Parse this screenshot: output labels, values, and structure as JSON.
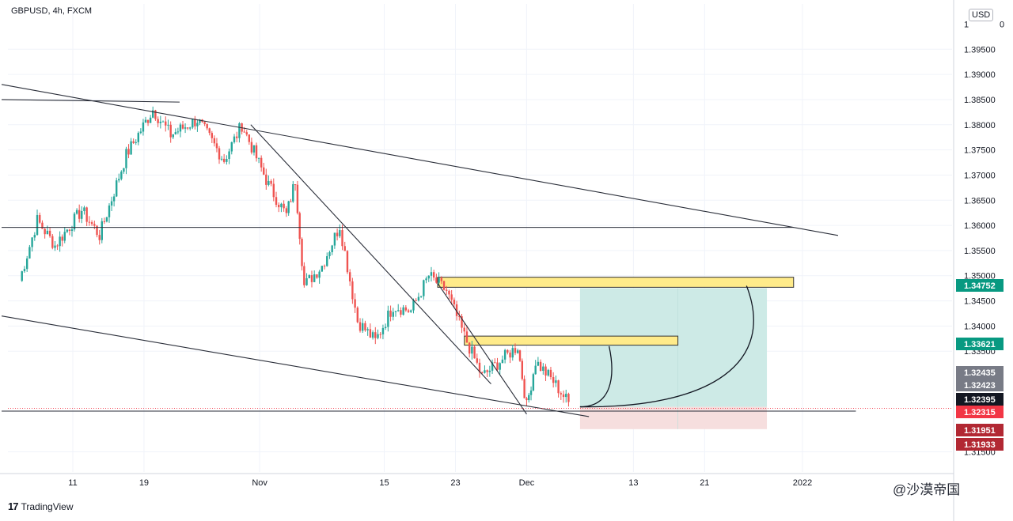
{
  "header": {
    "symbol_line": "GBPUSD, 4h, FXCM",
    "currency": "USD"
  },
  "footer": {
    "brand": "TradingView",
    "brand_logo": "17",
    "watermark": "@沙漠帝国"
  },
  "colors": {
    "up": "#26a69a",
    "down": "#ef5350",
    "zone_fill": "#ffeb8a",
    "profit_fill": "#cdeae6",
    "loss_fill": "#f6dede",
    "grid": "#f0f3fa",
    "line": "#2a2e39"
  },
  "chart_data": {
    "type": "candlestick",
    "timeframe": "4h",
    "y_axis": {
      "range": [
        1.311,
        1.404
      ],
      "tick_labels": [
        "1.39500",
        "1.39000",
        "1.38500",
        "1.38000",
        "1.37500",
        "1.37000",
        "1.36500",
        "1.36000",
        "1.35500",
        "1.35000",
        "1.34500",
        "1.34000",
        "1.33500",
        "1.31500"
      ],
      "top_clipped_label": "1.40000"
    },
    "x_axis": {
      "tick_labels": [
        "11",
        "19",
        "Nov",
        "15",
        "23",
        "Dec",
        "13",
        "21",
        "2022"
      ]
    },
    "price_tags": [
      {
        "value": "1.34752",
        "color": "#089981",
        "kind": "target"
      },
      {
        "value": "1.33621",
        "color": "#089981",
        "kind": "entry-zone"
      },
      {
        "value": "1.32435",
        "color": "#787b86",
        "kind": "high"
      },
      {
        "value": "1.32423",
        "color": "#787b86",
        "kind": "marker"
      },
      {
        "value": "1.32395",
        "color": "#131722",
        "kind": "last"
      },
      {
        "value": "1.32315",
        "color": "#f23645",
        "kind": "stop-line"
      },
      {
        "value": "1.31951",
        "color": "#b22833",
        "kind": "stop"
      },
      {
        "value": "1.31933",
        "color": "#b22833",
        "kind": "low"
      }
    ],
    "swing_points": [
      {
        "date": "Oct 5",
        "price": 1.349
      },
      {
        "date": "Oct 7",
        "price": 1.361
      },
      {
        "date": "Oct 9",
        "price": 1.356
      },
      {
        "date": "Oct 12",
        "price": 1.363
      },
      {
        "date": "Oct 14",
        "price": 1.358
      },
      {
        "date": "Oct 17",
        "price": 1.374
      },
      {
        "date": "Oct 20",
        "price": 1.383
      },
      {
        "date": "Oct 22",
        "price": 1.378
      },
      {
        "date": "Oct 25",
        "price": 1.381
      },
      {
        "date": "Oct 28",
        "price": 1.373
      },
      {
        "date": "Oct 30",
        "price": 1.38
      },
      {
        "date": "Nov 2",
        "price": 1.368
      },
      {
        "date": "Nov 4",
        "price": 1.362
      },
      {
        "date": "Nov 5",
        "price": 1.369
      },
      {
        "date": "Nov 6",
        "price": 1.348
      },
      {
        "date": "Nov 8",
        "price": 1.352
      },
      {
        "date": "Nov 10",
        "price": 1.36
      },
      {
        "date": "Nov 12",
        "price": 1.341
      },
      {
        "date": "Nov 14",
        "price": 1.337
      },
      {
        "date": "Nov 16",
        "price": 1.344
      },
      {
        "date": "Nov 18",
        "price": 1.343
      },
      {
        "date": "Nov 20",
        "price": 1.35
      },
      {
        "date": "Nov 22",
        "price": 1.347
      },
      {
        "date": "Nov 24",
        "price": 1.338
      },
      {
        "date": "Nov 26",
        "price": 1.33
      },
      {
        "date": "Nov 28",
        "price": 1.333
      },
      {
        "date": "Nov 30",
        "price": 1.336
      },
      {
        "date": "Dec 1",
        "price": 1.324
      },
      {
        "date": "Dec 2",
        "price": 1.333
      },
      {
        "date": "Dec 4",
        "price": 1.329
      },
      {
        "date": "Dec 6",
        "price": 1.324
      }
    ],
    "drawings": {
      "trendlines": [
        {
          "name": "upper-channel",
          "from": {
            "date": "Oct 3",
            "price": 1.388
          },
          "to": {
            "date": "Jan 5",
            "price": 1.358
          }
        },
        {
          "name": "lower-channel",
          "from": {
            "date": "Oct 3",
            "price": 1.342
          },
          "to": {
            "date": "Dec 8",
            "price": 1.322
          }
        },
        {
          "name": "peak-line",
          "from": {
            "date": "Oct 3",
            "price": 1.385
          },
          "to": {
            "date": "Oct 23",
            "price": 1.3845
          }
        },
        {
          "name": "descending-1",
          "from": {
            "date": "Oct 31",
            "price": 1.38
          },
          "to": {
            "date": "Nov 27",
            "price": 1.3285
          }
        },
        {
          "name": "descending-2",
          "from": {
            "date": "Nov 21",
            "price": 1.3485
          },
          "to": {
            "date": "Dec 1",
            "price": 1.3225
          }
        }
      ],
      "horizontals": [
        {
          "name": "support-1.36",
          "price": 1.3596,
          "from": "Oct 3",
          "to": "Dec 31"
        },
        {
          "name": "stop-line",
          "price": 1.3231,
          "from": "Oct 3",
          "to": "Jan 7"
        }
      ],
      "zones": [
        {
          "name": "upper-supply-zone",
          "top": 1.3497,
          "bottom": 1.3477,
          "from": "Nov 21",
          "to": "Dec 31"
        },
        {
          "name": "lower-supply-zone",
          "top": 1.338,
          "bottom": 1.3362,
          "from": "Nov 24",
          "to": "Dec 18"
        }
      ],
      "position": {
        "type": "long",
        "from": "Dec 7",
        "to": "Dec 28",
        "entry": 1.32395,
        "target": 1.34752,
        "stop": 1.31951,
        "lower_target": 1.33621
      }
    }
  }
}
